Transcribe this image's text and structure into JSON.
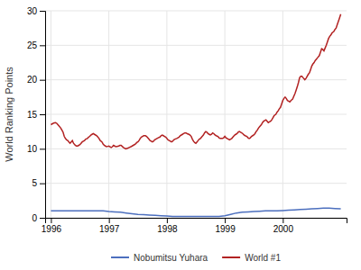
{
  "chart_data": {
    "type": "line",
    "ylabel": "World Ranking Points",
    "xlim": [
      1995.9,
      2001.1
    ],
    "ylim": [
      0,
      30
    ],
    "xticks": [
      1996,
      1997,
      1998,
      1999,
      2000
    ],
    "yticks": [
      0,
      5,
      10,
      15,
      20,
      25,
      30
    ],
    "grid": true,
    "legend": "bottom",
    "series": [
      {
        "name": "Nobumitsu Yuhara",
        "color": "#4c6fbe",
        "x": [
          1996.0,
          1996.1,
          1996.2,
          1996.3,
          1996.4,
          1996.5,
          1996.6,
          1996.7,
          1996.8,
          1996.9,
          1997.0,
          1997.1,
          1997.2,
          1997.3,
          1997.4,
          1997.5,
          1997.6,
          1997.7,
          1997.8,
          1997.9,
          1998.0,
          1998.1,
          1998.2,
          1998.3,
          1998.4,
          1998.5,
          1998.6,
          1998.7,
          1998.8,
          1998.9,
          1999.0,
          1999.1,
          1999.2,
          1999.3,
          1999.4,
          1999.5,
          1999.6,
          1999.7,
          1999.8,
          1999.9,
          2000.0,
          2000.1,
          2000.2,
          2000.3,
          2000.4,
          2000.5,
          2000.6,
          2000.7,
          2000.8,
          2000.9,
          2001.0
        ],
        "values": [
          1.0,
          1.0,
          1.0,
          1.0,
          1.0,
          1.0,
          1.0,
          1.0,
          1.0,
          1.0,
          0.9,
          0.85,
          0.8,
          0.7,
          0.6,
          0.5,
          0.45,
          0.4,
          0.35,
          0.3,
          0.25,
          0.2,
          0.2,
          0.2,
          0.2,
          0.2,
          0.2,
          0.2,
          0.2,
          0.2,
          0.3,
          0.5,
          0.7,
          0.8,
          0.85,
          0.9,
          0.95,
          1.0,
          1.0,
          1.0,
          1.05,
          1.1,
          1.15,
          1.2,
          1.25,
          1.3,
          1.35,
          1.4,
          1.4,
          1.35,
          1.3
        ]
      },
      {
        "name": "World #1",
        "color": "#b22222",
        "x": [
          1996.0,
          1996.02,
          1996.04,
          1996.06,
          1996.08,
          1996.1,
          1996.12,
          1996.14,
          1996.17,
          1996.19,
          1996.21,
          1996.23,
          1996.25,
          1996.27,
          1996.29,
          1996.31,
          1996.33,
          1996.35,
          1996.37,
          1996.39,
          1996.42,
          1996.44,
          1996.46,
          1996.48,
          1996.5,
          1996.52,
          1996.54,
          1996.56,
          1996.58,
          1996.6,
          1996.63,
          1996.65,
          1996.67,
          1996.69,
          1996.71,
          1996.73,
          1996.75,
          1996.77,
          1996.79,
          1996.81,
          1996.83,
          1996.85,
          1996.88,
          1996.9,
          1996.92,
          1996.94,
          1996.96,
          1996.98,
          1997.0,
          1997.02,
          1997.04,
          1997.06,
          1997.08,
          1997.1,
          1997.12,
          1997.14,
          1997.17,
          1997.19,
          1997.21,
          1997.23,
          1997.25,
          1997.27,
          1997.29,
          1997.31,
          1997.33,
          1997.35,
          1997.38,
          1997.4,
          1997.42,
          1997.44,
          1997.46,
          1997.48,
          1997.5,
          1997.52,
          1997.54,
          1997.56,
          1997.58,
          1997.6,
          1997.63,
          1997.65,
          1997.67,
          1997.69,
          1997.71,
          1997.73,
          1997.75,
          1997.77,
          1997.79,
          1997.81,
          1997.83,
          1997.85,
          1997.88,
          1997.9,
          1997.92,
          1997.94,
          1997.96,
          1997.98,
          1998.0,
          1998.02,
          1998.04,
          1998.06,
          1998.08,
          1998.1,
          1998.12,
          1998.14,
          1998.17,
          1998.19,
          1998.21,
          1998.23,
          1998.25,
          1998.27,
          1998.29,
          1998.31,
          1998.33,
          1998.35,
          1998.38,
          1998.4,
          1998.42,
          1998.44,
          1998.46,
          1998.48,
          1998.5,
          1998.52,
          1998.54,
          1998.56,
          1998.58,
          1998.6,
          1998.63,
          1998.65,
          1998.67,
          1998.69,
          1998.71,
          1998.73,
          1998.75,
          1998.77,
          1998.79,
          1998.81,
          1998.83,
          1998.85,
          1998.88,
          1998.9,
          1998.92,
          1998.94,
          1998.96,
          1998.98,
          1999.0,
          1999.02,
          1999.04,
          1999.06,
          1999.08,
          1999.1,
          1999.12,
          1999.14,
          1999.17,
          1999.19,
          1999.21,
          1999.23,
          1999.25,
          1999.27,
          1999.29,
          1999.31,
          1999.33,
          1999.35,
          1999.38,
          1999.4,
          1999.42,
          1999.44,
          1999.46,
          1999.48,
          1999.5,
          1999.52,
          1999.54,
          1999.56,
          1999.58,
          1999.6,
          1999.63,
          1999.65,
          1999.67,
          1999.69,
          1999.71,
          1999.73,
          1999.75,
          1999.77,
          1999.79,
          1999.81,
          1999.83,
          1999.85,
          1999.88,
          1999.9,
          1999.92,
          1999.94,
          1999.96,
          1999.98,
          2000.0,
          2000.02,
          2000.04,
          2000.06,
          2000.08,
          2000.1,
          2000.12,
          2000.14,
          2000.17,
          2000.19,
          2000.21,
          2000.23,
          2000.25,
          2000.27,
          2000.29,
          2000.31,
          2000.33,
          2000.35,
          2000.38,
          2000.4,
          2000.42,
          2000.44,
          2000.46,
          2000.48,
          2000.5,
          2000.52,
          2000.54,
          2000.56,
          2000.58,
          2000.6,
          2000.63,
          2000.65,
          2000.67,
          2000.69,
          2000.71,
          2000.73,
          2000.75,
          2000.77,
          2000.79,
          2000.81,
          2000.83,
          2000.85,
          2000.88,
          2000.9,
          2000.92,
          2000.94,
          2000.96,
          2000.98,
          2001.0
        ],
        "values": [
          13.5,
          13.6,
          13.7,
          13.75,
          13.8,
          13.7,
          13.5,
          13.3,
          13.0,
          12.7,
          12.4,
          11.8,
          11.5,
          11.3,
          11.2,
          11.0,
          10.8,
          11.0,
          11.2,
          10.8,
          10.5,
          10.4,
          10.4,
          10.5,
          10.6,
          10.8,
          11.0,
          11.1,
          11.2,
          11.4,
          11.5,
          11.7,
          11.8,
          12.0,
          12.1,
          12.2,
          12.1,
          12.0,
          11.9,
          11.7,
          11.5,
          11.2,
          11.0,
          10.7,
          10.5,
          10.4,
          10.3,
          10.35,
          10.4,
          10.3,
          10.2,
          10.3,
          10.5,
          10.4,
          10.3,
          10.35,
          10.4,
          10.5,
          10.5,
          10.35,
          10.2,
          10.1,
          10.0,
          10.05,
          10.1,
          10.2,
          10.3,
          10.4,
          10.5,
          10.6,
          10.7,
          10.9,
          11.0,
          11.2,
          11.5,
          11.7,
          11.8,
          11.9,
          11.9,
          11.8,
          11.6,
          11.4,
          11.2,
          11.1,
          11.0,
          11.1,
          11.3,
          11.4,
          11.5,
          11.6,
          11.7,
          11.9,
          12.0,
          11.9,
          11.8,
          11.7,
          11.5,
          11.3,
          11.2,
          11.1,
          11.0,
          11.1,
          11.3,
          11.4,
          11.5,
          11.6,
          11.7,
          11.9,
          12.0,
          12.1,
          12.2,
          12.3,
          12.3,
          12.2,
          12.1,
          12.0,
          11.8,
          11.4,
          11.1,
          10.9,
          10.8,
          11.0,
          11.2,
          11.4,
          11.5,
          11.7,
          12.0,
          12.3,
          12.5,
          12.4,
          12.2,
          12.1,
          12.0,
          12.1,
          12.3,
          12.2,
          12.0,
          11.9,
          11.8,
          11.6,
          11.5,
          11.5,
          11.5,
          11.6,
          11.8,
          11.6,
          11.5,
          11.4,
          11.3,
          11.4,
          11.5,
          11.7,
          12.0,
          12.1,
          12.2,
          12.4,
          12.5,
          12.4,
          12.3,
          12.2,
          12.0,
          11.9,
          11.8,
          11.6,
          11.5,
          11.6,
          11.8,
          11.9,
          12.0,
          12.2,
          12.5,
          12.7,
          13.0,
          13.2,
          13.5,
          13.8,
          14.0,
          14.1,
          14.2,
          14.0,
          13.8,
          13.9,
          14.0,
          14.2,
          14.5,
          14.8,
          15.0,
          15.3,
          15.5,
          15.8,
          16.0,
          16.5,
          17.0,
          17.3,
          17.5,
          17.3,
          17.0,
          16.9,
          16.8,
          17.0,
          17.2,
          17.6,
          18.0,
          18.5,
          19.0,
          19.6,
          20.3,
          20.5,
          20.5,
          20.3,
          20.0,
          20.2,
          20.5,
          20.8,
          21.0,
          21.5,
          22.0,
          22.3,
          22.5,
          22.8,
          23.0,
          23.2,
          23.5,
          24.0,
          24.5,
          24.4,
          24.2,
          24.6,
          25.0,
          25.5,
          26.0,
          26.3,
          26.5,
          26.8,
          27.0,
          27.3,
          27.5,
          28.0,
          28.5,
          29.0,
          29.5
        ]
      }
    ]
  }
}
